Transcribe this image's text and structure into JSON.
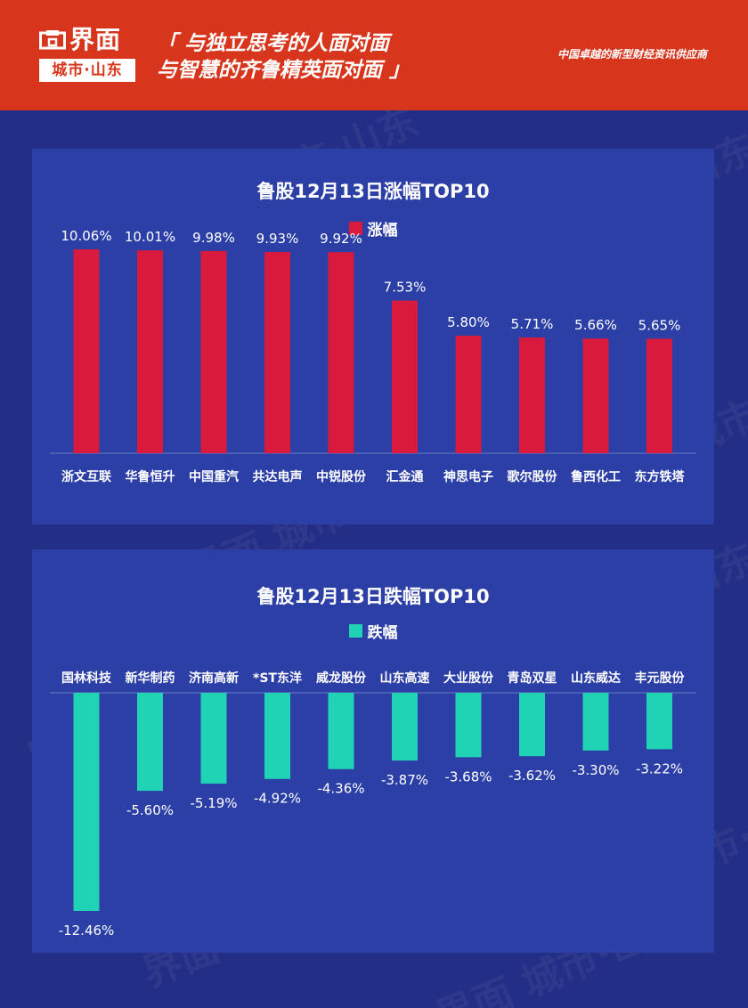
{
  "header": {
    "logo_name": "界面",
    "logo_sub": "城市·山东",
    "slogan_line1": "「 与独立思考的人面对面",
    "slogan_line2": "与智慧的齐鲁精英面对面 」",
    "tagline": "中国卓越的新型财经资讯供应商"
  },
  "colors": {
    "background": "#232f86",
    "panel": "#2b3fa6",
    "header": "#d8361c",
    "gain_bar": "#d91a3c",
    "loss_bar": "#20d3b4",
    "text": "#ffffff"
  },
  "chart_data": [
    {
      "type": "bar",
      "title": "鲁股12月13日涨幅TOP10",
      "legend": "涨幅",
      "categories": [
        "浙文互联",
        "华鲁恒升",
        "中国重汽",
        "共达电声",
        "中锐股份",
        "汇金通",
        "神思电子",
        "歌尔股份",
        "鲁西化工",
        "东方铁塔"
      ],
      "values": [
        10.06,
        10.01,
        9.98,
        9.93,
        9.92,
        7.53,
        5.8,
        5.71,
        5.66,
        5.65
      ],
      "labels": [
        "10.06%",
        "10.01%",
        "9.98%",
        "9.93%",
        "9.92%",
        "7.53%",
        "5.80%",
        "5.71%",
        "5.66%",
        "5.65%"
      ],
      "unit": "%",
      "color": "#d91a3c",
      "ylim": [
        0,
        10.06
      ]
    },
    {
      "type": "bar",
      "title": "鲁股12月13日跌幅TOP10",
      "legend": "跌幅",
      "categories": [
        "国林科技",
        "新华制药",
        "济南高新",
        "*ST东洋",
        "威龙股份",
        "山东高速",
        "大业股份",
        "青岛双星",
        "山东威达",
        "丰元股份"
      ],
      "values": [
        -12.46,
        -5.6,
        -5.19,
        -4.92,
        -4.36,
        -3.87,
        -3.68,
        -3.62,
        -3.3,
        -3.22
      ],
      "labels": [
        "-12.46%",
        "-5.60%",
        "-5.19%",
        "-4.92%",
        "-4.36%",
        "-3.87%",
        "-3.68%",
        "-3.62%",
        "-3.30%",
        "-3.22%"
      ],
      "unit": "%",
      "color": "#20d3b4",
      "ylim": [
        -12.46,
        0
      ]
    }
  ],
  "watermark": "界面 城市·山东"
}
